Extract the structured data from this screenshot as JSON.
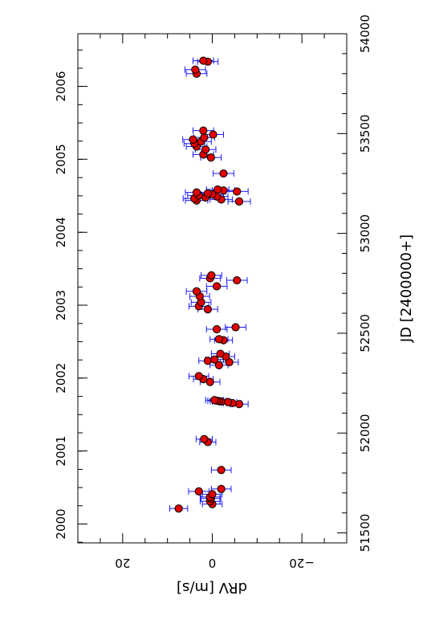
{
  "chart_data": {
    "type": "scatter",
    "orientation": "rotated-90",
    "title": "",
    "ylabel": "dRV  [m/s]",
    "xlabel_jd": "JD  [2400000+]",
    "xlabel_year": "",
    "xlim_jd": [
      51450,
      54000
    ],
    "ylim": [
      30,
      -30
    ],
    "jd_ticks": [
      51500,
      52000,
      52500,
      53000,
      53500,
      54000
    ],
    "jd_tick_labels": [
      "51500",
      "52000",
      "52500",
      "53000",
      "53500",
      "54000"
    ],
    "year_ticks": [
      "2000",
      "2001",
      "2002",
      "2003",
      "2004",
      "2005",
      "2006"
    ],
    "year_tick_jd": [
      51544.5,
      51910.5,
      52275.5,
      52640.5,
      53005.5,
      53371.5,
      53736.5
    ],
    "rv_ticks": [
      20,
      0,
      -20
    ],
    "rv_tick_labels": [
      "20",
      "0",
      "−20"
    ],
    "grid": false,
    "marker_color": "#e00000",
    "marker_edge": "#000000",
    "errorbar_color": "#1a1aff",
    "series": [
      {
        "points": [
          {
            "jd": 51622,
            "rv": 7.5,
            "err": 2.0
          },
          {
            "jd": 51644,
            "rv": 0.0,
            "err": 2.2
          },
          {
            "jd": 51658,
            "rv": 0.5,
            "err": 2.2
          },
          {
            "jd": 51672,
            "rv": 0.3,
            "err": 2.2
          },
          {
            "jd": 51680,
            "rv": 0.5,
            "err": 2.2
          },
          {
            "jd": 51694,
            "rv": 0.0,
            "err": 2.2
          },
          {
            "jd": 51708,
            "rv": 3.0,
            "err": 2.3
          },
          {
            "jd": 51720,
            "rv": -2.0,
            "err": 2.2
          },
          {
            "jd": 51815,
            "rv": -2.0,
            "err": 2.2
          },
          {
            "jd": 51955,
            "rv": 1.0,
            "err": 1.8
          },
          {
            "jd": 51970,
            "rv": 1.8,
            "err": 1.8
          },
          {
            "jd": 52145,
            "rv": -6.0,
            "err": 2.0
          },
          {
            "jd": 52150,
            "rv": -4.5,
            "err": 2.0
          },
          {
            "jd": 52155,
            "rv": -3.5,
            "err": 2.0
          },
          {
            "jd": 52158,
            "rv": -2.0,
            "err": 2.0
          },
          {
            "jd": 52160,
            "rv": -1.5,
            "err": 2.0
          },
          {
            "jd": 52162,
            "rv": -1.0,
            "err": 2.0
          },
          {
            "jd": 52165,
            "rv": -0.5,
            "err": 2.0
          },
          {
            "jd": 52256,
            "rv": 0.5,
            "err": 2.2
          },
          {
            "jd": 52270,
            "rv": 2.0,
            "err": 2.2
          },
          {
            "jd": 52285,
            "rv": 3.0,
            "err": 2.2
          },
          {
            "jd": 52340,
            "rv": -1.5,
            "err": 2.0
          },
          {
            "jd": 52355,
            "rv": -3.8,
            "err": 2.0
          },
          {
            "jd": 52362,
            "rv": 1.0,
            "err": 2.0
          },
          {
            "jd": 52368,
            "rv": -0.5,
            "err": 2.0
          },
          {
            "jd": 52383,
            "rv": -3.0,
            "err": 2.0
          },
          {
            "jd": 52397,
            "rv": -1.8,
            "err": 2.0
          },
          {
            "jd": 52465,
            "rv": -2.5,
            "err": 2.0
          },
          {
            "jd": 52470,
            "rv": -1.5,
            "err": 2.0
          },
          {
            "jd": 52520,
            "rv": -1.0,
            "err": 2.3
          },
          {
            "jd": 52530,
            "rv": -5.2,
            "err": 2.3
          },
          {
            "jd": 52620,
            "rv": 1.0,
            "err": 2.2
          },
          {
            "jd": 52635,
            "rv": 3.0,
            "err": 2.2
          },
          {
            "jd": 52655,
            "rv": 2.5,
            "err": 2.2
          },
          {
            "jd": 52685,
            "rv": 2.8,
            "err": 2.2
          },
          {
            "jd": 52710,
            "rv": 3.5,
            "err": 2.3
          },
          {
            "jd": 52735,
            "rv": -1.0,
            "err": 2.3
          },
          {
            "jd": 52765,
            "rv": -5.5,
            "err": 2.3
          },
          {
            "jd": 52775,
            "rv": 0.5,
            "err": 2.3
          },
          {
            "jd": 52790,
            "rv": 0.2,
            "err": 2.3
          },
          {
            "jd": 53160,
            "rv": -6.0,
            "err": 2.5
          },
          {
            "jd": 53165,
            "rv": 3.5,
            "err": 2.5
          },
          {
            "jd": 53170,
            "rv": -2.0,
            "err": 2.5
          },
          {
            "jd": 53175,
            "rv": 4.0,
            "err": 2.5
          },
          {
            "jd": 53180,
            "rv": 1.5,
            "err": 2.5
          },
          {
            "jd": 53185,
            "rv": -1.0,
            "err": 2.5
          },
          {
            "jd": 53190,
            "rv": 3.0,
            "err": 2.5
          },
          {
            "jd": 53195,
            "rv": 0.0,
            "err": 2.5
          },
          {
            "jd": 53200,
            "rv": 1.0,
            "err": 2.5
          },
          {
            "jd": 53205,
            "rv": 3.5,
            "err": 2.5
          },
          {
            "jd": 53210,
            "rv": -5.5,
            "err": 2.5
          },
          {
            "jd": 53215,
            "rv": -2.5,
            "err": 2.5
          },
          {
            "jd": 53220,
            "rv": -1.2,
            "err": 2.5
          },
          {
            "jd": 53300,
            "rv": -2.5,
            "err": 2.3
          },
          {
            "jd": 53380,
            "rv": 0.3,
            "err": 2.3
          },
          {
            "jd": 53395,
            "rv": 2.0,
            "err": 2.3
          },
          {
            "jd": 53420,
            "rv": 1.5,
            "err": 2.3
          },
          {
            "jd": 53435,
            "rv": 3.5,
            "err": 2.3
          },
          {
            "jd": 53450,
            "rv": 4.0,
            "err": 2.3
          },
          {
            "jd": 53460,
            "rv": 2.5,
            "err": 2.3
          },
          {
            "jd": 53470,
            "rv": 4.3,
            "err": 2.3
          },
          {
            "jd": 53480,
            "rv": 1.8,
            "err": 2.3
          },
          {
            "jd": 53495,
            "rv": -0.2,
            "err": 2.3
          },
          {
            "jd": 53515,
            "rv": 2.0,
            "err": 2.3
          },
          {
            "jd": 53800,
            "rv": 3.5,
            "err": 2.3
          },
          {
            "jd": 53820,
            "rv": 3.8,
            "err": 2.3
          },
          {
            "jd": 53860,
            "rv": 1.0,
            "err": 2.3
          },
          {
            "jd": 53865,
            "rv": 2.0,
            "err": 2.3
          }
        ]
      }
    ]
  }
}
